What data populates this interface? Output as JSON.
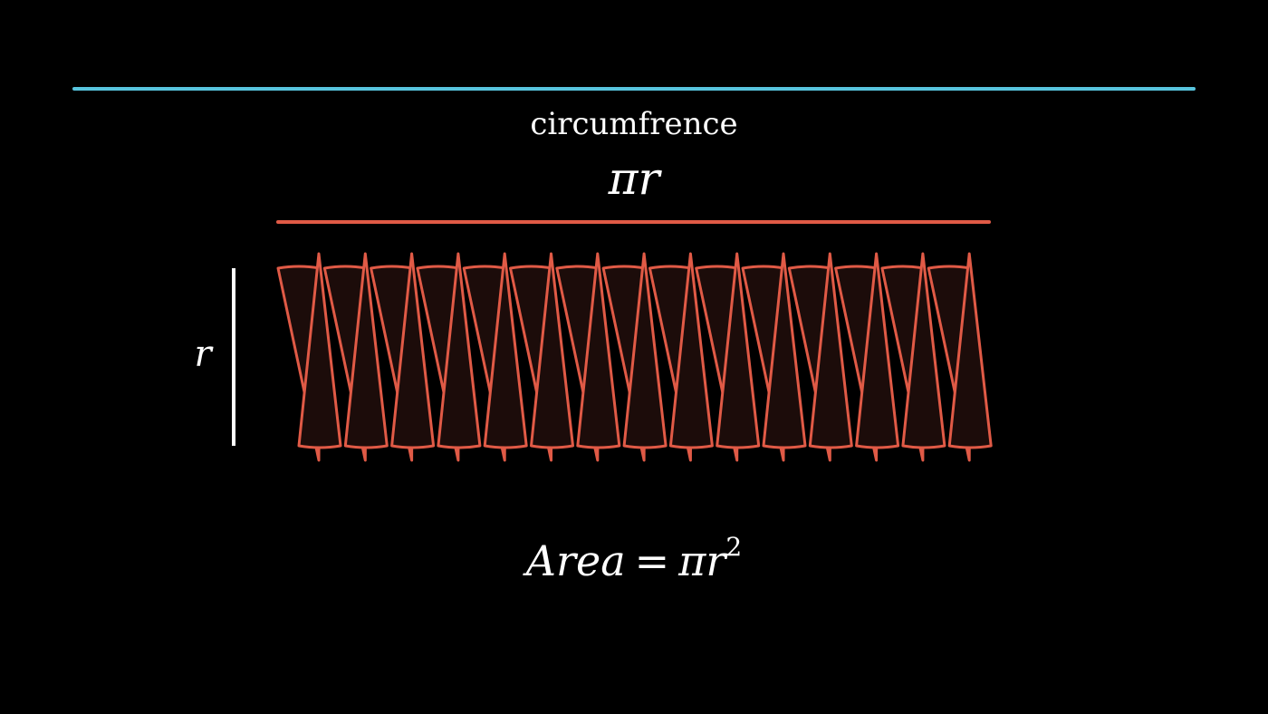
{
  "labels": {
    "circumference_word": "circumfrence",
    "half_circumference_pi": "π",
    "half_circumference_r": "r",
    "radius": "r",
    "area_word": "Area",
    "area_equals": "=",
    "area_pi": "π",
    "area_r": "r",
    "area_exponent": "2"
  },
  "colors": {
    "background": "#000000",
    "circumference_line": "#58c4dd",
    "half_circumference_line": "#e05a46",
    "wedge_stroke": "#e05a46",
    "wedge_fill": "#1c0c0a",
    "radius_line": "#ffffff",
    "text": "#ffffff"
  },
  "rearrangement": {
    "wedge_pairs": 15,
    "wedges_pointing_up": 15,
    "wedges_pointing_down": 15
  }
}
